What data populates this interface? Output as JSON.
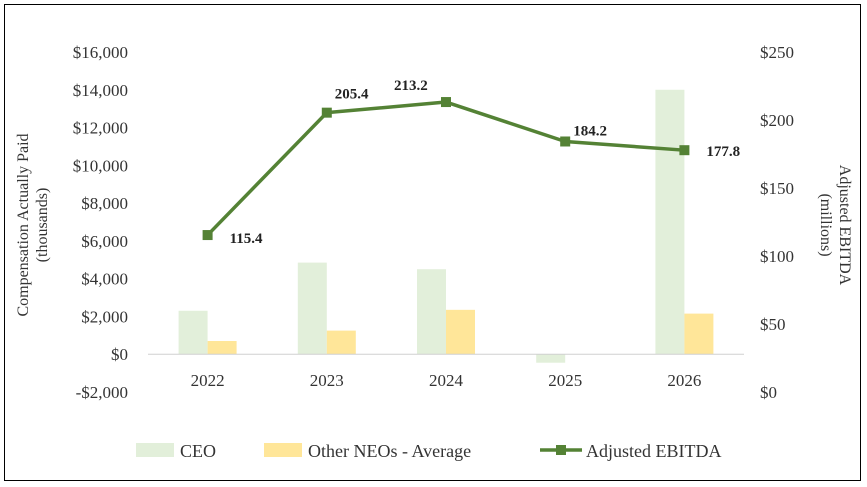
{
  "chart_data": {
    "type": "bar+line",
    "categories": [
      "2022",
      "2023",
      "2024",
      "2025",
      "2026"
    ],
    "series": [
      {
        "name": "CEO",
        "kind": "bar",
        "axis": "left",
        "color": "#e2efda",
        "values": [
          2300,
          4850,
          4500,
          -450,
          14000
        ]
      },
      {
        "name": "Other NEOs - Average",
        "kind": "bar",
        "axis": "left",
        "color": "#ffe699",
        "values": [
          700,
          1250,
          2350,
          0,
          2150
        ]
      },
      {
        "name": "Adjusted EBITDA",
        "kind": "line",
        "axis": "right",
        "color": "#548235",
        "values": [
          115.4,
          205.4,
          213.2,
          184.2,
          177.8
        ],
        "labels": [
          "115.4",
          "205.4",
          "213.2",
          "184.2",
          "177.8"
        ]
      }
    ],
    "left_axis": {
      "title_line1": "Compensation Actually Paid",
      "title_line2": "(thousands)",
      "ylim": [
        -2000,
        16000
      ],
      "ticks": [
        -2000,
        0,
        2000,
        4000,
        6000,
        8000,
        10000,
        12000,
        14000,
        16000
      ],
      "tick_labels": [
        "-$2,000",
        "$0",
        "$2,000",
        "$4,000",
        "$6,000",
        "$8,000",
        "$10,000",
        "$12,000",
        "$14,000",
        "$16,000"
      ]
    },
    "right_axis": {
      "title_line1": "Adjusted EBITDA",
      "title_line2": "(millions)",
      "ylim": [
        0,
        250
      ],
      "ticks": [
        0,
        50,
        100,
        150,
        200,
        250
      ],
      "tick_labels": [
        "$0",
        "$50",
        "$100",
        "$150",
        "$200",
        "$250"
      ]
    },
    "grid": false,
    "legend_position": "bottom",
    "legend": [
      "CEO",
      "Other NEOs - Average",
      "Adjusted EBITDA"
    ]
  }
}
